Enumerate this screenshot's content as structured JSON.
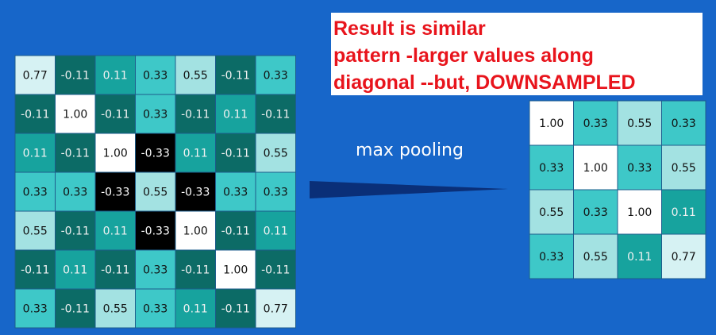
{
  "annotation": {
    "lines": [
      "Result is similar",
      "pattern -larger values along",
      "diagonal --but, DOWNSAMPLED"
    ]
  },
  "operation_label": "max pooling",
  "left_grid": {
    "rows": [
      [
        "0.77",
        "-0.11",
        "0.11",
        "0.33",
        "0.55",
        "-0.11",
        "0.33"
      ],
      [
        "-0.11",
        "1.00",
        "-0.11",
        "0.33",
        "-0.11",
        "0.11",
        "-0.11"
      ],
      [
        "0.11",
        "-0.11",
        "1.00",
        "-0.33",
        "0.11",
        "-0.11",
        "0.55"
      ],
      [
        "0.33",
        "0.33",
        "-0.33",
        "0.55",
        "-0.33",
        "0.33",
        "0.33"
      ],
      [
        "0.55",
        "-0.11",
        "0.11",
        "-0.33",
        "1.00",
        "-0.11",
        "0.11"
      ],
      [
        "-0.11",
        "0.11",
        "-0.11",
        "0.33",
        "-0.11",
        "1.00",
        "-0.11"
      ],
      [
        "0.33",
        "-0.11",
        "0.55",
        "0.33",
        "0.11",
        "-0.11",
        "0.77"
      ]
    ]
  },
  "right_grid": {
    "rows": [
      [
        "1.00",
        "0.33",
        "0.55",
        "0.33"
      ],
      [
        "0.33",
        "1.00",
        "0.33",
        "0.55"
      ],
      [
        "0.55",
        "0.33",
        "1.00",
        "0.11"
      ],
      [
        "0.33",
        "0.55",
        "0.11",
        "0.77"
      ]
    ]
  }
}
